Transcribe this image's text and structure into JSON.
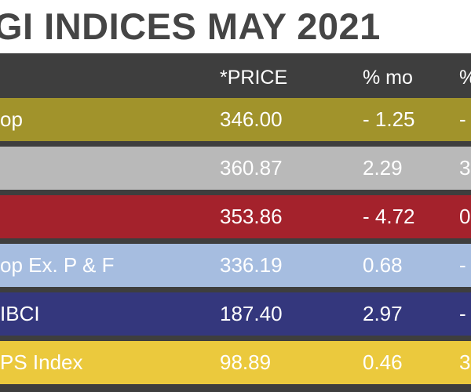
{
  "title": "GI INDICES MAY 2021",
  "colors": {
    "background": "#3e3e3e",
    "title_bar": "#ffffff",
    "title_text": "#454545",
    "text": "#ffffff"
  },
  "headers": {
    "name": "",
    "price": "*PRICE",
    "mo": "% mo",
    "yr": "%"
  },
  "rows": [
    {
      "name": "op",
      "price": "346.00",
      "mo": "- 1.25",
      "yr": "-",
      "color": "#a1932b"
    },
    {
      "name": "",
      "price": "360.87",
      "mo": "2.29",
      "yr": "3",
      "color": "#b9b9b9"
    },
    {
      "name": "",
      "price": "353.86",
      "mo": "- 4.72",
      "yr": "0",
      "color": "#a4222c"
    },
    {
      "name": "op Ex. P & F",
      "price": "336.19",
      "mo": "0.68",
      "yr": "-",
      "color": "#a6bde0"
    },
    {
      "name": "IBCI",
      "price": "187.40",
      "mo": "2.97",
      "yr": "-",
      "color": "#34377d"
    },
    {
      "name": "PS Index",
      "price": "98.89",
      "mo": "0.46",
      "yr": "3",
      "color": "#ebc93d"
    }
  ]
}
